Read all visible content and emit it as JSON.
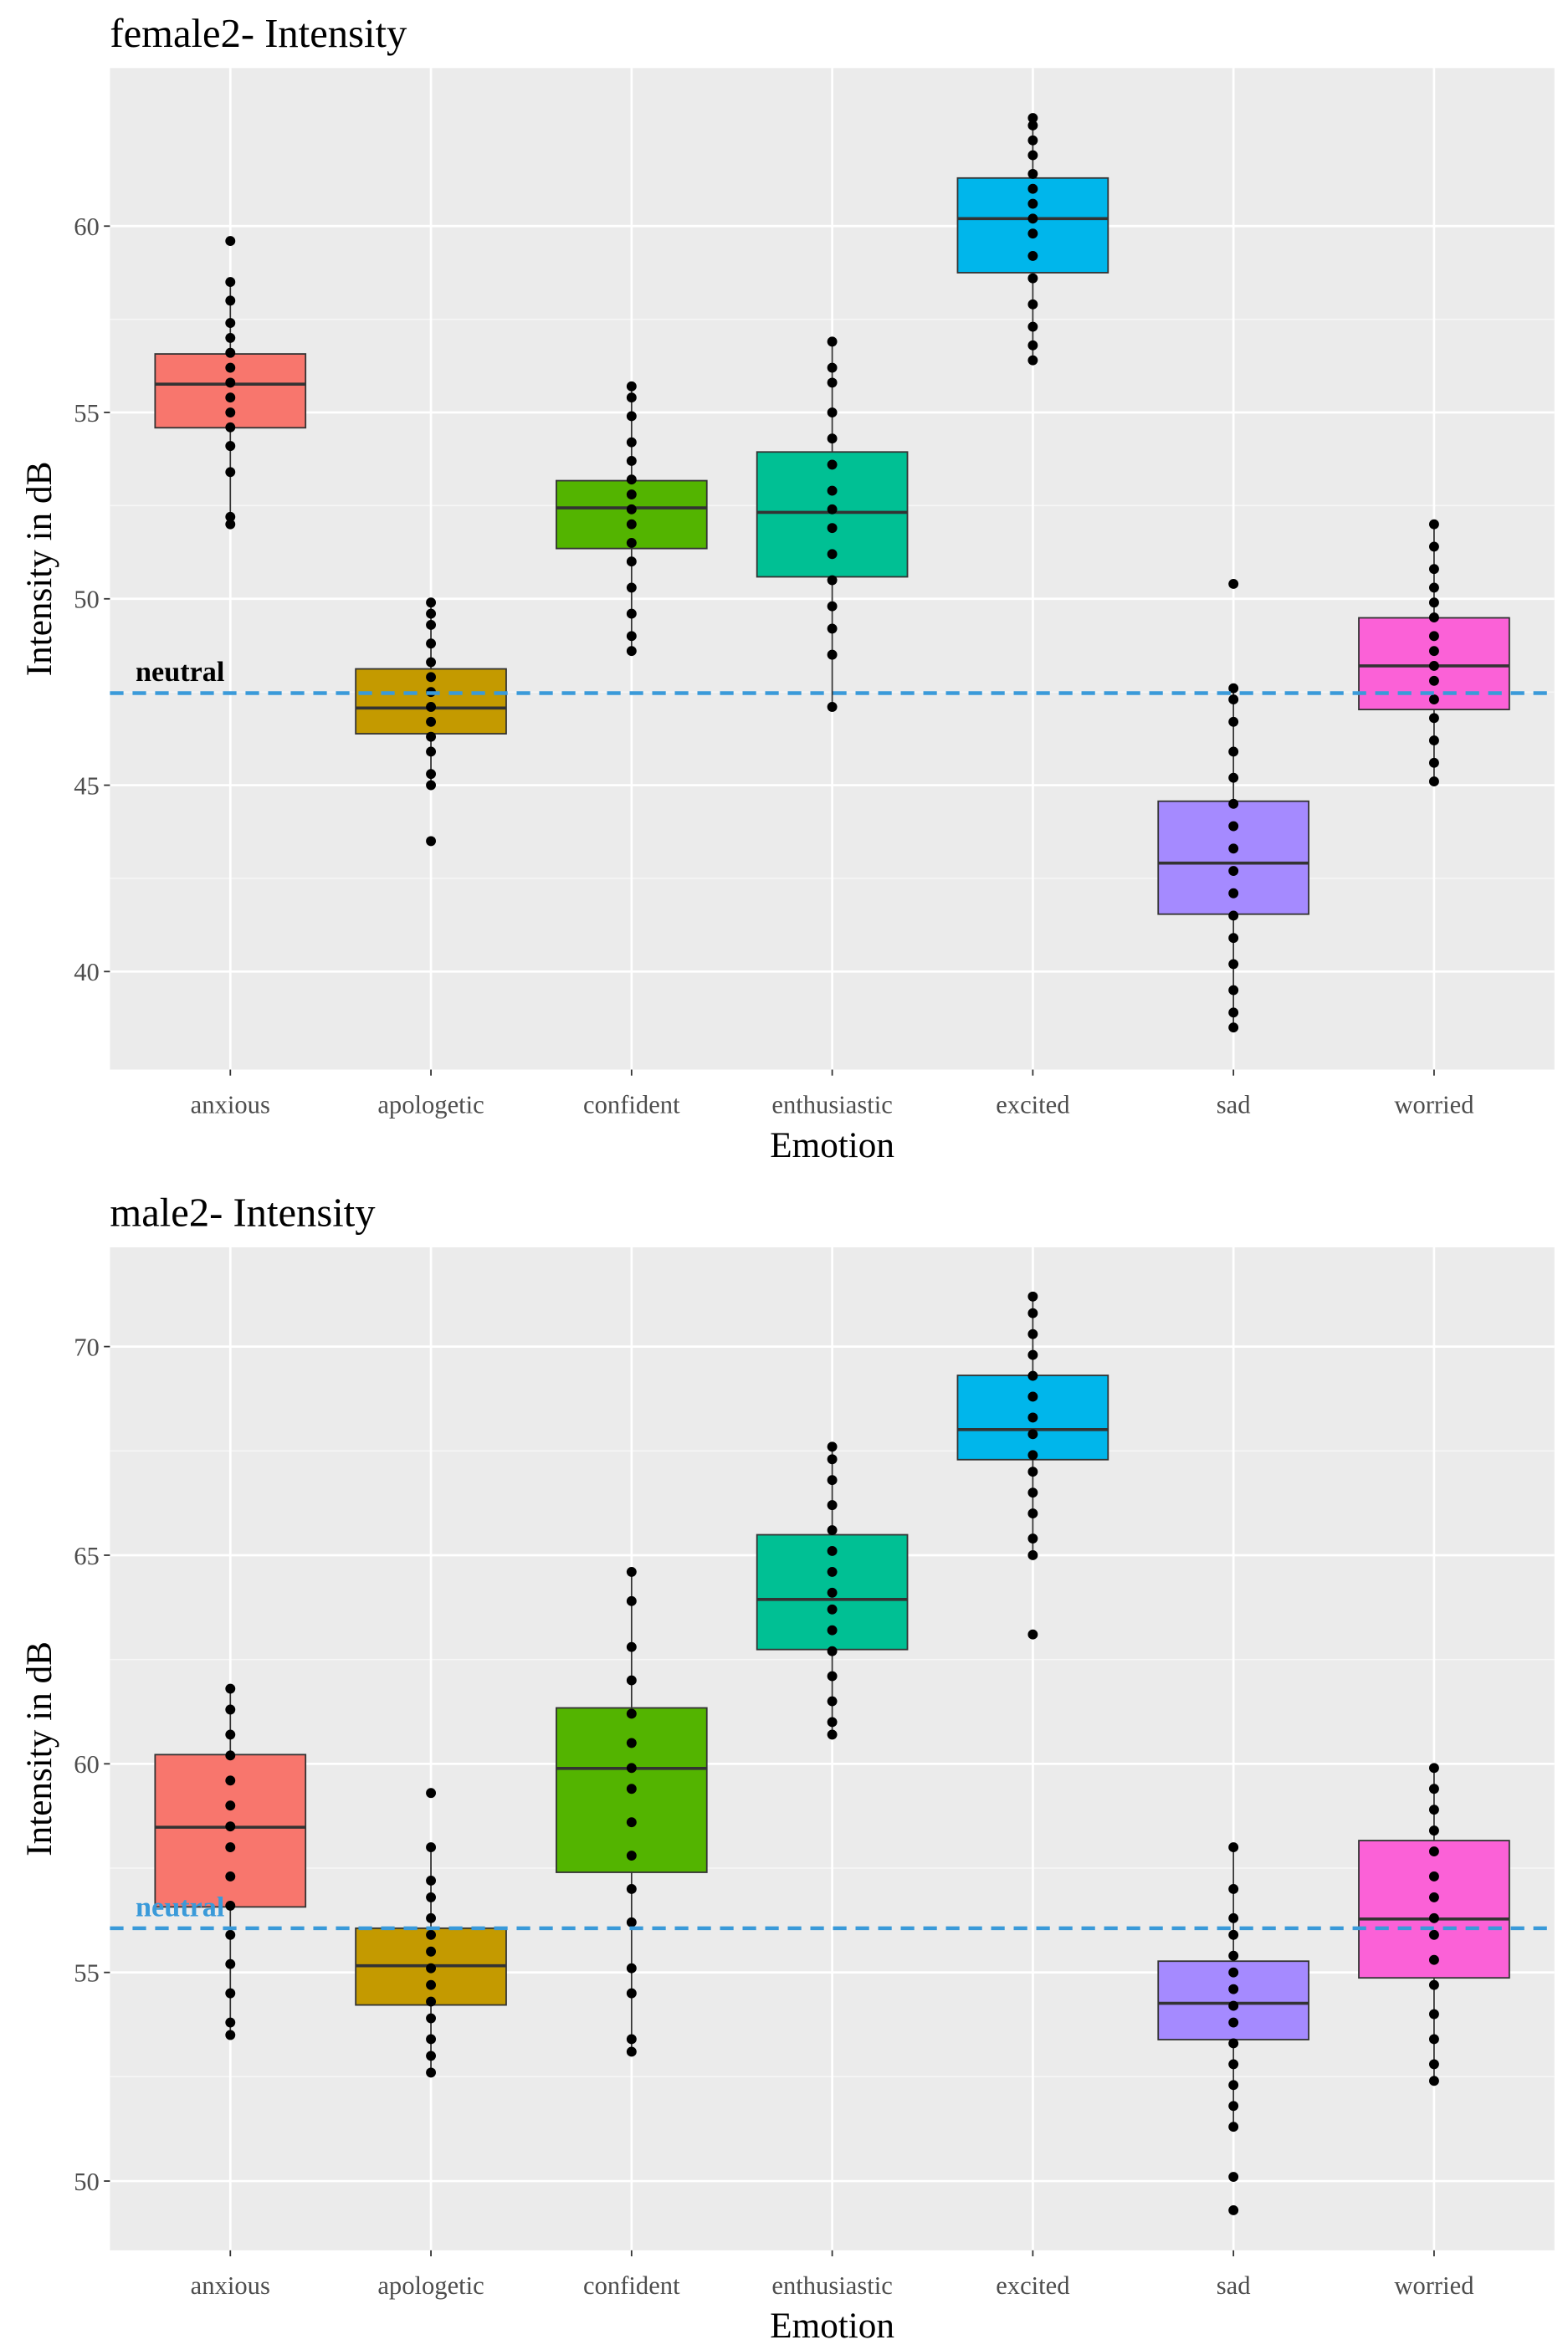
{
  "chart_data": [
    {
      "type": "box",
      "title": "female2- Intensity",
      "xlabel": "Emotion",
      "ylabel": "Intensity in dB",
      "categories": [
        "anxious",
        "apologetic",
        "confident",
        "enthusiastic",
        "excited",
        "sad",
        "worried"
      ],
      "colors": [
        "#F8766D",
        "#C49A00",
        "#53B400",
        "#00C094",
        "#00B6EB",
        "#A58AFF",
        "#FB61D7"
      ],
      "boxes": [
        {
          "whisker_low": 52.0,
          "q1": 54.59,
          "median": 55.76,
          "q3": 56.57,
          "whisker_high": 58.5,
          "points": [
            52.0,
            52.2,
            53.4,
            54.1,
            54.6,
            55.0,
            55.4,
            55.8,
            56.2,
            56.6,
            57.0,
            57.4,
            58.0,
            58.5,
            59.6
          ]
        },
        {
          "whisker_low": 45.0,
          "q1": 46.38,
          "median": 47.07,
          "q3": 48.12,
          "whisker_high": 49.9,
          "points": [
            43.5,
            45.0,
            45.3,
            45.9,
            46.3,
            46.7,
            47.1,
            47.5,
            47.9,
            48.3,
            48.8,
            49.3,
            49.6,
            49.9
          ]
        },
        {
          "whisker_low": 48.6,
          "q1": 51.35,
          "median": 52.44,
          "q3": 53.17,
          "whisker_high": 55.7,
          "points": [
            48.6,
            49.0,
            49.6,
            50.3,
            51.0,
            51.5,
            52.0,
            52.4,
            52.8,
            53.2,
            53.7,
            54.2,
            54.9,
            55.4,
            55.7
          ]
        },
        {
          "whisker_low": 47.1,
          "q1": 50.59,
          "median": 52.32,
          "q3": 53.94,
          "whisker_high": 56.9,
          "points": [
            47.1,
            48.5,
            49.2,
            49.8,
            50.5,
            51.2,
            51.9,
            52.4,
            52.9,
            53.6,
            54.3,
            55.0,
            55.8,
            56.2,
            56.9
          ]
        },
        {
          "whisker_low": 56.4,
          "q1": 58.75,
          "median": 60.2,
          "q3": 61.29,
          "whisker_high": 62.9,
          "points": [
            56.4,
            56.8,
            57.3,
            57.9,
            58.6,
            59.2,
            59.8,
            60.2,
            60.6,
            61.0,
            61.4,
            61.9,
            62.3,
            62.7,
            62.9
          ]
        },
        {
          "whisker_low": 38.5,
          "q1": 41.54,
          "median": 42.91,
          "q3": 44.57,
          "whisker_high": 47.6,
          "points": [
            38.5,
            38.9,
            39.5,
            40.2,
            40.9,
            41.5,
            42.1,
            42.7,
            43.3,
            43.9,
            44.5,
            45.2,
            45.9,
            46.7,
            47.3,
            47.6,
            50.4
          ]
        },
        {
          "whisker_low": 45.1,
          "q1": 47.03,
          "median": 48.2,
          "q3": 49.49,
          "whisker_high": 52.0,
          "points": [
            45.1,
            45.6,
            46.2,
            46.8,
            47.3,
            47.8,
            48.2,
            48.6,
            49.0,
            49.5,
            49.9,
            50.3,
            50.8,
            51.4,
            52.0
          ]
        }
      ],
      "reference_line": {
        "value": 47.47,
        "label": "neutral",
        "color": "#3a9ad9",
        "label_color": "#000000"
      },
      "ylim": [
        37.37,
        64.24
      ],
      "yticks": [
        40,
        45,
        50,
        55,
        60
      ],
      "grid": true
    },
    {
      "type": "box",
      "title": "male2- Intensity",
      "xlabel": "Emotion",
      "ylabel": "Intensity in dB",
      "categories": [
        "anxious",
        "apologetic",
        "confident",
        "enthusiastic",
        "excited",
        "sad",
        "worried"
      ],
      "colors": [
        "#F8766D",
        "#C49A00",
        "#53B400",
        "#00C094",
        "#00B6EB",
        "#A58AFF",
        "#FB61D7"
      ],
      "boxes": [
        {
          "whisker_low": 53.5,
          "q1": 56.57,
          "median": 58.48,
          "q3": 60.22,
          "whisker_high": 61.8,
          "points": [
            53.5,
            53.8,
            54.5,
            55.2,
            55.9,
            56.6,
            57.3,
            58.0,
            58.5,
            59.0,
            59.6,
            60.2,
            60.7,
            61.3,
            61.8
          ]
        },
        {
          "whisker_low": 52.6,
          "q1": 54.22,
          "median": 55.16,
          "q3": 56.06,
          "whisker_high": 58.0,
          "points": [
            52.6,
            53.0,
            53.4,
            53.9,
            54.3,
            54.7,
            55.1,
            55.5,
            55.9,
            56.3,
            56.8,
            57.2,
            58.0,
            59.3
          ]
        },
        {
          "whisker_low": 53.1,
          "q1": 57.4,
          "median": 59.89,
          "q3": 61.34,
          "whisker_high": 64.6,
          "points": [
            53.1,
            53.4,
            54.5,
            55.1,
            56.2,
            57.0,
            57.8,
            58.6,
            59.4,
            59.9,
            60.5,
            61.2,
            62.0,
            62.8,
            63.9,
            64.6
          ]
        },
        {
          "whisker_low": 60.7,
          "q1": 62.74,
          "median": 63.94,
          "q3": 65.49,
          "whisker_high": 67.6,
          "points": [
            60.7,
            61.0,
            61.5,
            62.1,
            62.7,
            63.2,
            63.7,
            64.1,
            64.6,
            65.1,
            65.6,
            66.2,
            66.8,
            67.3,
            67.6
          ]
        },
        {
          "whisker_low": 65.0,
          "q1": 67.29,
          "median": 68.01,
          "q3": 69.31,
          "whisker_high": 71.2,
          "points": [
            63.1,
            65.0,
            65.4,
            66.0,
            66.5,
            67.0,
            67.4,
            67.9,
            68.3,
            68.8,
            69.3,
            69.8,
            70.3,
            70.8,
            71.2
          ]
        },
        {
          "whisker_low": 51.3,
          "q1": 53.39,
          "median": 54.26,
          "q3": 55.27,
          "whisker_high": 58.0,
          "points": [
            49.3,
            50.1,
            51.3,
            51.8,
            52.3,
            52.8,
            53.3,
            53.8,
            54.2,
            54.6,
            55.0,
            55.4,
            55.9,
            56.3,
            57.0,
            58.0
          ]
        },
        {
          "whisker_low": 52.4,
          "q1": 54.87,
          "median": 56.28,
          "q3": 58.16,
          "whisker_high": 59.9,
          "points": [
            52.4,
            52.8,
            53.4,
            54.0,
            54.7,
            55.3,
            55.9,
            56.3,
            56.8,
            57.3,
            57.9,
            58.4,
            58.9,
            59.4,
            59.9
          ]
        }
      ],
      "reference_line": {
        "value": 56.06,
        "label": "neutral",
        "color": "#3a9ad9",
        "label_color": "#3a9ad9"
      },
      "ylim": [
        48.34,
        72.38
      ],
      "yticks": [
        50,
        55,
        60,
        65,
        70
      ],
      "grid": true
    }
  ]
}
